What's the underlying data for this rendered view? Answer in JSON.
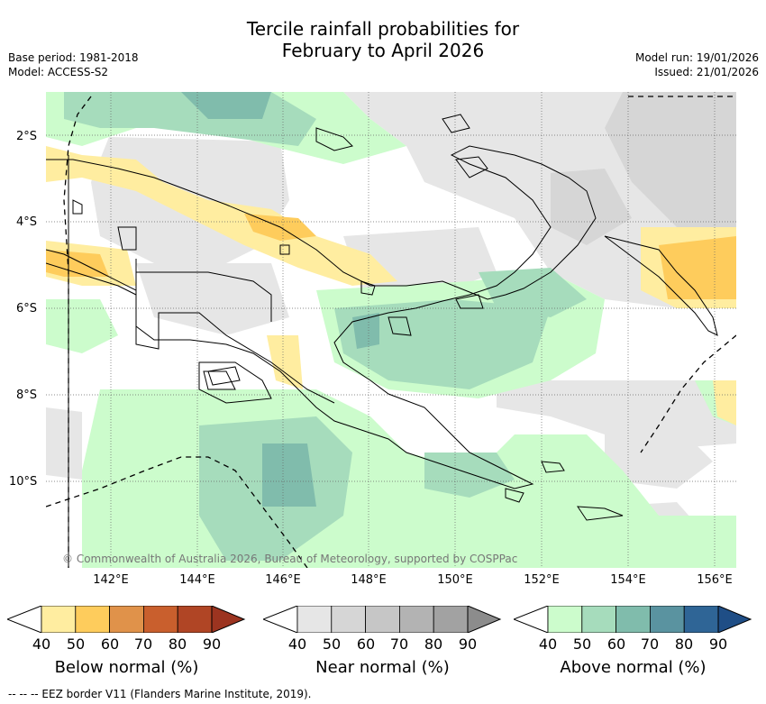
{
  "header": {
    "title_line1": "Tercile rainfall probabilities for",
    "title_line2": "February to April 2026",
    "base_period": "Base period: 1981-2018",
    "model": "Model: ACCESS-S2",
    "model_run": "Model run: 19/01/2026",
    "issued": "Issued: 21/01/2026"
  },
  "map": {
    "lat_labels": [
      "2°S",
      "4°S",
      "6°S",
      "8°S",
      "10°S"
    ],
    "lon_labels": [
      "142°E",
      "144°E",
      "146°E",
      "148°E",
      "150°E",
      "152°E",
      "154°E",
      "156°E"
    ],
    "copyright": "© Commonwealth of Australia 2026, Bureau of Meteorology, supported by COSPPac",
    "grid": true
  },
  "legend": {
    "ticks": [
      "40",
      "50",
      "60",
      "70",
      "80",
      "90"
    ],
    "below": {
      "title": "Below normal (%)",
      "colors": [
        "#ffeda0",
        "#fecc5c",
        "#e0924a",
        "#c95f2d",
        "#b04525",
        "#9c3420"
      ]
    },
    "near": {
      "title": "Near normal (%)",
      "colors": [
        "#e6e6e6",
        "#d6d6d6",
        "#c6c6c6",
        "#b3b3b3",
        "#a2a2a2",
        "#8c8c8c"
      ]
    },
    "above": {
      "title": "Above normal (%)",
      "colors": [
        "#ccfccc",
        "#a6dcbc",
        "#80bcac",
        "#5a93a0",
        "#2f6596",
        "#1f4e86"
      ]
    }
  },
  "eez_note": "--  --  -- EEZ border V11 (Flanders Marine Institute, 2019)."
}
